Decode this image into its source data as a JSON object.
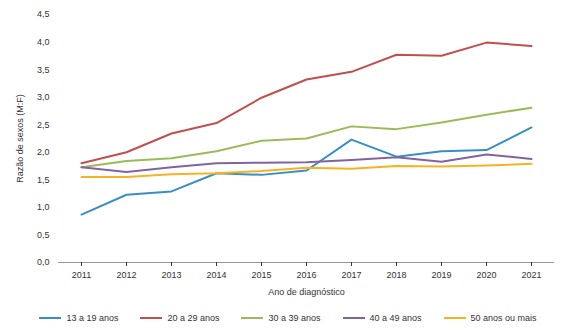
{
  "chart_data": {
    "type": "line",
    "xlabel": "Ano de diagnóstico",
    "ylabel": "Razão de sexos (M:F)",
    "categories": [
      "2011",
      "2012",
      "2013",
      "2014",
      "2015",
      "2016",
      "2017",
      "2018",
      "2019",
      "2020",
      "2021"
    ],
    "series": [
      {
        "name": "13 a 19 anos",
        "color": "#3a8ec6",
        "values": [
          0.87,
          1.23,
          1.29,
          1.62,
          1.59,
          1.67,
          2.23,
          1.92,
          2.02,
          2.04,
          2.45
        ]
      },
      {
        "name": "20 a 29 anos",
        "color": "#c0504d",
        "values": [
          1.8,
          2.0,
          2.34,
          2.53,
          2.99,
          3.32,
          3.46,
          3.77,
          3.75,
          3.99,
          3.93
        ]
      },
      {
        "name": "30 a 39 anos",
        "color": "#9bbb59",
        "values": [
          1.73,
          1.84,
          1.89,
          2.02,
          2.21,
          2.25,
          2.47,
          2.42,
          2.54,
          2.68,
          2.81
        ]
      },
      {
        "name": "40 a 49 anos",
        "color": "#8064a2",
        "values": [
          1.73,
          1.64,
          1.73,
          1.8,
          1.81,
          1.82,
          1.86,
          1.91,
          1.83,
          1.96,
          1.88
        ]
      },
      {
        "name": "50 anos ou mais",
        "color": "#f5b323",
        "values": [
          1.55,
          1.55,
          1.6,
          1.62,
          1.66,
          1.72,
          1.7,
          1.75,
          1.74,
          1.76,
          1.79
        ]
      }
    ],
    "ylim": [
      0,
      4.5
    ],
    "yticks": [
      {
        "value": 0,
        "label": "0,0"
      },
      {
        "value": 0.5,
        "label": "0,5"
      },
      {
        "value": 1,
        "label": "1,0"
      },
      {
        "value": 1.5,
        "label": "1,5"
      },
      {
        "value": 2,
        "label": "2,0"
      },
      {
        "value": 2.5,
        "label": "2,5"
      },
      {
        "value": 3,
        "label": "3,0"
      },
      {
        "value": 3.5,
        "label": "3,5"
      },
      {
        "value": 4,
        "label": "4,0"
      },
      {
        "value": 4.5,
        "label": "4,5"
      }
    ],
    "grid": false,
    "legend": "bottom"
  }
}
